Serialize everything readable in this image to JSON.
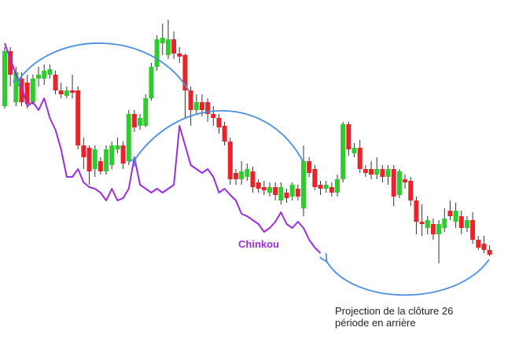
{
  "chart_data": {
    "type": "candlestick",
    "ylim": [
      -35,
      400
    ],
    "up_color": "#2fcc2f",
    "down_color": "#e8242b",
    "candles": {
      "open": [
        265,
        335,
        270,
        300,
        295,
        270,
        300,
        300,
        305,
        305,
        285,
        278,
        285,
        285,
        215,
        212,
        185,
        195,
        182,
        190,
        210,
        215,
        195,
        255,
        240,
        240,
        275,
        315,
        345,
        330,
        350,
        332,
        330,
        285,
        260,
        270,
        270,
        255,
        250,
        240,
        220,
        180,
        172,
        175,
        182,
        168,
        162,
        155,
        162,
        145,
        155,
        150,
        160,
        135,
        195,
        185,
        165,
        160,
        162,
        155,
        172,
        242,
        205,
        212,
        185,
        185,
        178,
        185,
        175,
        185,
        152,
        172,
        170,
        145,
        118,
        110,
        115,
        102,
        110,
        132,
        118,
        125,
        110,
        120,
        95,
        90,
        82
      ],
      "high": [
        340,
        340,
        315,
        308,
        305,
        305,
        315,
        318,
        318,
        310,
        295,
        290,
        305,
        290,
        225,
        215,
        215,
        200,
        215,
        220,
        225,
        220,
        260,
        260,
        255,
        280,
        320,
        355,
        370,
        375,
        360,
        340,
        332,
        290,
        280,
        280,
        275,
        265,
        255,
        245,
        225,
        185,
        195,
        192,
        188,
        172,
        170,
        168,
        168,
        168,
        160,
        168,
        165,
        215,
        200,
        190,
        170,
        170,
        168,
        178,
        245,
        245,
        218,
        222,
        190,
        195,
        200,
        190,
        190,
        190,
        185,
        178,
        175,
        150,
        140,
        125,
        122,
        120,
        135,
        145,
        142,
        132,
        125,
        130,
        100,
        100,
        88
      ],
      "low": [
        262,
        290,
        265,
        265,
        262,
        267,
        290,
        292,
        300,
        280,
        275,
        275,
        275,
        210,
        185,
        165,
        175,
        178,
        178,
        185,
        205,
        185,
        190,
        232,
        235,
        238,
        272,
        310,
        330,
        325,
        325,
        320,
        250,
        240,
        255,
        252,
        245,
        240,
        230,
        215,
        165,
        165,
        165,
        170,
        155,
        155,
        152,
        150,
        145,
        140,
        142,
        145,
        145,
        125,
        175,
        158,
        152,
        155,
        150,
        150,
        168,
        202,
        200,
        180,
        175,
        172,
        172,
        168,
        165,
        138,
        148,
        160,
        138,
        102,
        100,
        102,
        95,
        65,
        105,
        120,
        110,
        102,
        105,
        90,
        82,
        78,
        74
      ],
      "close": [
        335,
        305,
        308,
        270,
        268,
        300,
        305,
        310,
        312,
        285,
        280,
        285,
        282,
        215,
        200,
        182,
        210,
        182,
        210,
        215,
        215,
        192,
        255,
        238,
        250,
        275,
        315,
        350,
        352,
        350,
        332,
        328,
        285,
        260,
        270,
        260,
        255,
        250,
        238,
        220,
        172,
        172,
        182,
        185,
        162,
        160,
        158,
        162,
        152,
        162,
        148,
        165,
        150,
        195,
        180,
        162,
        160,
        165,
        155,
        172,
        242,
        210,
        212,
        185,
        180,
        178,
        185,
        175,
        185,
        150,
        182,
        168,
        145,
        118,
        115,
        120,
        102,
        115,
        122,
        125,
        132,
        110,
        120,
        95,
        85,
        82,
        76
      ]
    },
    "chinkou": {
      "name": "Chinkou",
      "color": "#9a2fdc",
      "values": [
        345,
        325,
        305,
        290,
        265,
        270,
        260,
        275,
        250,
        235,
        210,
        175,
        175,
        185,
        168,
        162,
        160,
        155,
        145,
        160,
        145,
        148,
        160,
        200,
        165,
        160,
        155,
        160,
        155,
        160,
        165,
        240,
        215,
        190,
        185,
        180,
        185,
        175,
        155,
        160,
        152,
        145,
        128,
        125,
        120,
        115,
        105,
        110,
        118,
        130,
        115,
        110,
        118,
        110,
        95,
        85,
        78
      ]
    },
    "annotation_lines": [
      "Projection de la clôture 26",
      "période en arrière"
    ]
  }
}
